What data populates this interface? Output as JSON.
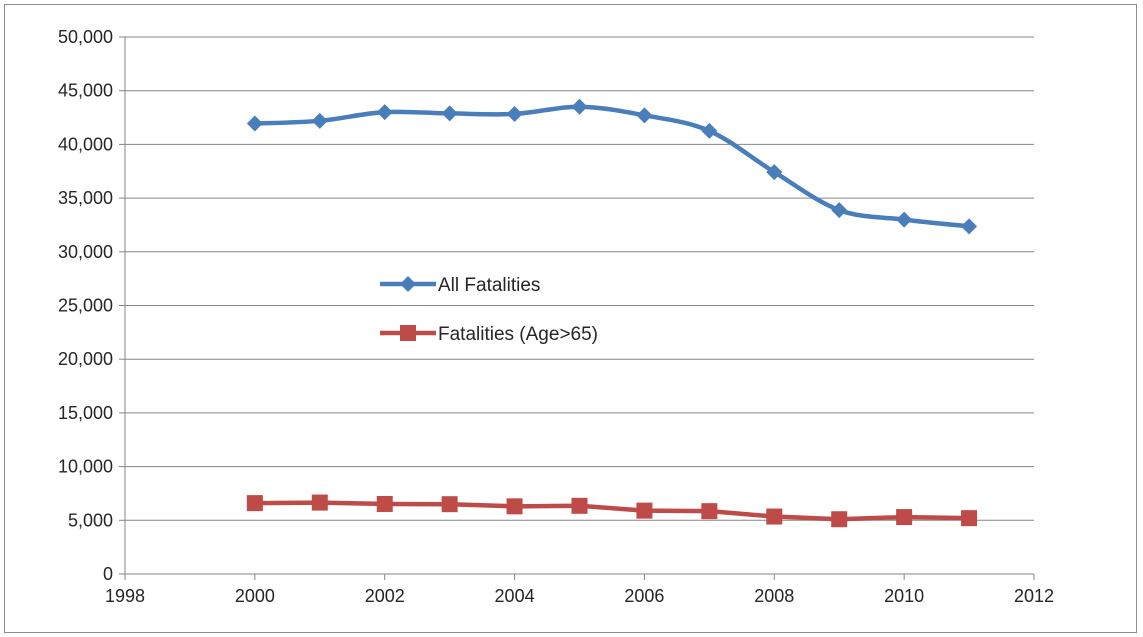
{
  "chart_data": {
    "type": "line",
    "title": "",
    "xlabel": "",
    "ylabel": "",
    "xlim": [
      1998,
      2012
    ],
    "ylim": [
      0,
      50000
    ],
    "x_ticks": [
      1998,
      2000,
      2002,
      2004,
      2006,
      2008,
      2010,
      2012
    ],
    "x_tick_labels": [
      "1998",
      "2000",
      "2002",
      "2004",
      "2006",
      "2008",
      "2010",
      "2012"
    ],
    "y_ticks": [
      0,
      5000,
      10000,
      15000,
      20000,
      25000,
      30000,
      35000,
      40000,
      45000,
      50000
    ],
    "y_tick_labels": [
      "0",
      "5,000",
      "10,000",
      "15,000",
      "20,000",
      "25,000",
      "30,000",
      "35,000",
      "40,000",
      "45,000",
      "50,000"
    ],
    "grid": "horizontal",
    "legend_position": "center",
    "x": [
      2000,
      2001,
      2002,
      2003,
      2004,
      2005,
      2006,
      2007,
      2008,
      2009,
      2010,
      2011
    ],
    "series": [
      {
        "name": "All Fatalities",
        "color": "#4a7ebb",
        "marker": "diamond",
        "smooth": true,
        "values": [
          41945,
          42196,
          43005,
          42884,
          42836,
          43510,
          42708,
          41259,
          37423,
          33883,
          32999,
          32367
        ]
      },
      {
        "name": "Fatalities (Age>65)",
        "color": "#be4b48",
        "marker": "square",
        "smooth": false,
        "values": [
          6600,
          6650,
          6520,
          6500,
          6300,
          6350,
          5900,
          5850,
          5350,
          5100,
          5300,
          5200
        ]
      }
    ]
  }
}
